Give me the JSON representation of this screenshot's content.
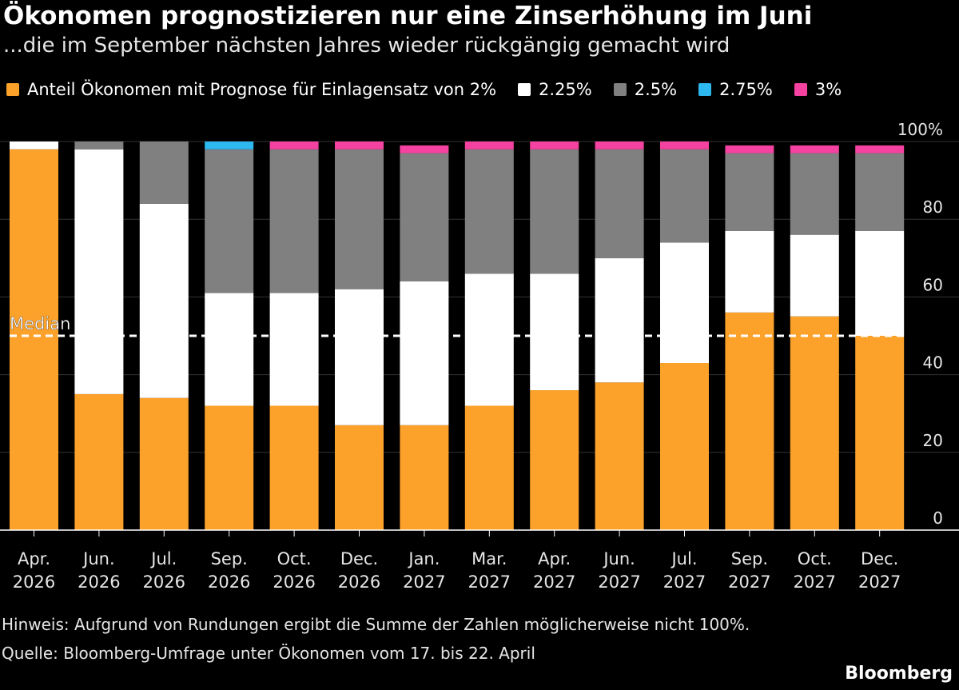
{
  "chart_data": {
    "type": "bar",
    "stacked": true,
    "title": "Ökonomen prognostizieren nur eine Zinserhöhung im Juni",
    "subtitle": "...die im September nächsten Jahres wieder rückgängig gemacht wird",
    "categories": [
      [
        "Apr.",
        "2026"
      ],
      [
        "Jun.",
        "2026"
      ],
      [
        "Jul.",
        "2026"
      ],
      [
        "Sep.",
        "2026"
      ],
      [
        "Oct.",
        "2026"
      ],
      [
        "Dec.",
        "2026"
      ],
      [
        "Jan.",
        "2027"
      ],
      [
        "Mar.",
        "2027"
      ],
      [
        "Apr.",
        "2027"
      ],
      [
        "Jun.",
        "2027"
      ],
      [
        "Jul.",
        "2027"
      ],
      [
        "Sep.",
        "2027"
      ],
      [
        "Oct.",
        "2027"
      ],
      [
        "Dec.",
        "2027"
      ]
    ],
    "series": [
      {
        "name": "Anteil Ökonomen mit Prognose für Einlagensatz von 2%",
        "color": "#FCA22A",
        "values": [
          98,
          35,
          34,
          32,
          32,
          27,
          27,
          32,
          36,
          38,
          43,
          56,
          55,
          50
        ]
      },
      {
        "name": "2.25%",
        "color": "#FFFFFF",
        "values": [
          2,
          63,
          50,
          29,
          29,
          35,
          37,
          34,
          30,
          32,
          31,
          21,
          21,
          27
        ]
      },
      {
        "name": "2.5%",
        "color": "#808080",
        "values": [
          0,
          2,
          16,
          37,
          37,
          36,
          33,
          32,
          32,
          28,
          24,
          20,
          21,
          20
        ]
      },
      {
        "name": "2.75%",
        "color": "#2EB8F0",
        "values": [
          0,
          0,
          0,
          2,
          0,
          0,
          0,
          0,
          0,
          0,
          0,
          0,
          0,
          0
        ]
      },
      {
        "name": "3%",
        "color": "#F542A1",
        "values": [
          0,
          0,
          0,
          0,
          2,
          2,
          2,
          2,
          2,
          2,
          2,
          2,
          2,
          2
        ]
      }
    ],
    "ylim": [
      0,
      100
    ],
    "yticks": [
      0,
      20,
      40,
      60,
      80,
      100
    ],
    "ytick_labels": [
      "0",
      "20",
      "40",
      "60",
      "80",
      "100%"
    ],
    "median": {
      "value": 50,
      "label": "Median"
    },
    "xlabel": "",
    "ylabel": ""
  },
  "notes": {
    "hint": "Hinweis: Aufgrund von Rundungen ergibt die Summe der Zahlen möglicherweise nicht 100%.",
    "source": "Quelle: Bloomberg-Umfrage unter Ökonomen vom 17. bis 22. April"
  },
  "brand": "Bloomberg"
}
